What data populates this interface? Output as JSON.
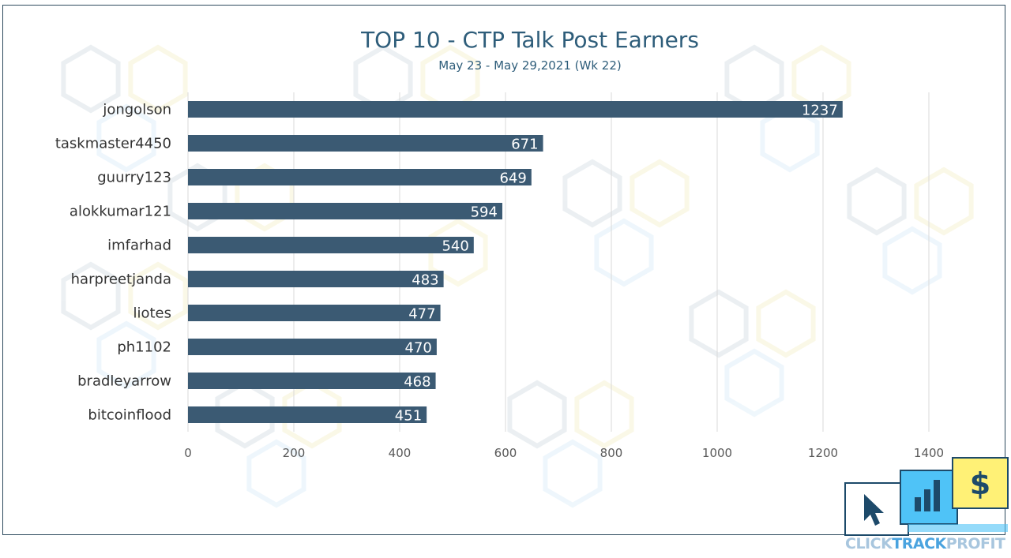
{
  "chart_data": {
    "type": "bar",
    "orientation": "horizontal",
    "title": "TOP 10 - CTP Talk Post Earners",
    "subtitle": "May 23 - May 29,2021 (Wk 22)",
    "categories": [
      "jongolson",
      "taskmaster4450",
      "guurry123",
      "alokkumar121",
      "imfarhad",
      "harpreetjanda",
      "liotes",
      "ph1102",
      "bradleyarrow",
      "bitcoinflood"
    ],
    "values": [
      1237,
      671,
      649,
      594,
      540,
      483,
      477,
      470,
      468,
      451
    ],
    "xlim": [
      0,
      1400
    ],
    "xticks": [
      0,
      200,
      400,
      600,
      800,
      1000,
      1200,
      1400
    ],
    "grid": "vertical",
    "data_labels": "inside-end",
    "bar_color": "#3b5a73",
    "grid_color": "#d9d9d9"
  },
  "logo": {
    "part1": "CLICK",
    "part2": "TRACK",
    "part3": "PROFIT",
    "icons": [
      "cursor-icon",
      "bar-chart-icon",
      "dollar-icon"
    ],
    "colors": {
      "cursor_bg": "#ffffff",
      "chart_bg": "#4fc3f7",
      "dollar_bg": "#fff176",
      "ink": "#1d4a6a"
    }
  }
}
